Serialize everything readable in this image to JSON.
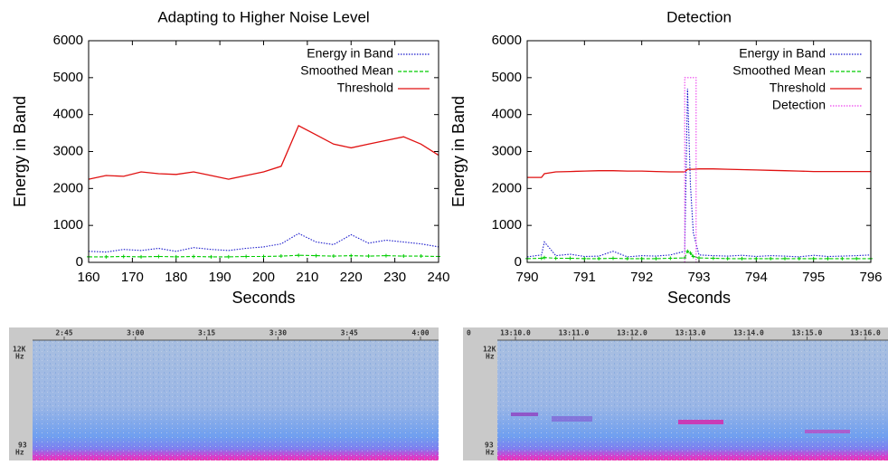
{
  "chart_data": [
    {
      "type": "line",
      "title": "Adapting to Higher Noise Level",
      "xlabel": "Seconds",
      "ylabel": "Energy in Band",
      "x": [
        160,
        164,
        168,
        172,
        176,
        180,
        184,
        188,
        192,
        196,
        200,
        204,
        208,
        212,
        216,
        220,
        224,
        228,
        232,
        236,
        240
      ],
      "xlim": [
        160,
        240
      ],
      "xticks": [
        160,
        170,
        180,
        190,
        200,
        210,
        220,
        230,
        240
      ],
      "ylim": [
        0,
        6000
      ],
      "yticks": [
        0,
        1000,
        2000,
        3000,
        4000,
        5000,
        6000
      ],
      "legend": "top-right",
      "series": [
        {
          "name": "Energy in Band",
          "color": "#1a1acc",
          "line_style": "dotted",
          "values": [
            300,
            280,
            350,
            320,
            380,
            300,
            400,
            350,
            320,
            380,
            420,
            500,
            780,
            550,
            480,
            750,
            520,
            600,
            550,
            500,
            420
          ]
        },
        {
          "name": "Smoothed Mean",
          "color": "#00cc00",
          "line_style": "dashed",
          "marker": "plus",
          "values": [
            150,
            150,
            160,
            150,
            160,
            150,
            160,
            150,
            150,
            160,
            160,
            170,
            190,
            180,
            170,
            180,
            170,
            180,
            170,
            170,
            160
          ]
        },
        {
          "name": "Threshold",
          "color": "#e01010",
          "line_style": "solid",
          "values": [
            2250,
            2350,
            2330,
            2450,
            2400,
            2380,
            2450,
            2350,
            2250,
            2350,
            2450,
            2600,
            3700,
            3450,
            3200,
            3100,
            3200,
            3300,
            3400,
            3200,
            2900
          ]
        }
      ]
    },
    {
      "type": "line",
      "title": "Detection",
      "xlabel": "Seconds",
      "ylabel": "Energy in Band",
      "x": [
        790,
        790.25,
        790.3,
        790.5,
        790.75,
        791,
        791.25,
        791.5,
        791.75,
        792,
        792.25,
        792.5,
        792.75,
        792.8,
        792.85,
        792.9,
        793,
        793.25,
        793.5,
        793.75,
        794,
        794.25,
        794.5,
        794.75,
        795,
        795.25,
        795.5,
        795.75,
        796
      ],
      "xlim": [
        790,
        796
      ],
      "xticks": [
        790,
        791,
        792,
        793,
        794,
        795,
        796
      ],
      "ylim": [
        0,
        6000
      ],
      "yticks": [
        0,
        1000,
        2000,
        3000,
        4000,
        5000,
        6000
      ],
      "legend": "top-right",
      "series": [
        {
          "name": "Energy in Band",
          "color": "#1a1acc",
          "line_style": "dotted",
          "values": [
            150,
            200,
            550,
            180,
            220,
            160,
            170,
            300,
            150,
            180,
            170,
            200,
            300,
            4700,
            2100,
            800,
            200,
            180,
            170,
            190,
            160,
            180,
            170,
            150,
            190,
            160,
            170,
            180,
            200
          ]
        },
        {
          "name": "Smoothed Mean",
          "color": "#00cc00",
          "line_style": "dashed",
          "marker": "plus",
          "values": [
            100,
            110,
            130,
            110,
            110,
            100,
            100,
            110,
            100,
            100,
            100,
            110,
            120,
            300,
            250,
            160,
            120,
            110,
            100,
            100,
            100,
            100,
            100,
            100,
            100,
            100,
            100,
            100,
            100
          ]
        },
        {
          "name": "Threshold",
          "color": "#e01010",
          "line_style": "solid",
          "values": [
            2300,
            2300,
            2400,
            2450,
            2460,
            2470,
            2480,
            2480,
            2470,
            2470,
            2460,
            2450,
            2450,
            2520,
            2520,
            2520,
            2530,
            2530,
            2520,
            2510,
            2500,
            2490,
            2480,
            2470,
            2460,
            2460,
            2460,
            2460,
            2460
          ]
        },
        {
          "name": "Detection",
          "color": "#ee44ee",
          "line_style": "dotted",
          "x": [
            792.75,
            792.75,
            792.95,
            792.95,
            792.75
          ],
          "values": [
            0,
            5000,
            5000,
            0,
            0
          ]
        }
      ]
    }
  ],
  "spectrograms": [
    {
      "time_labels": [
        "2:45",
        "3:00",
        "3:15",
        "3:30",
        "3:45",
        "4:00"
      ],
      "freq_top": "12K",
      "freq_bottom": "93",
      "freq_unit": "Hz"
    },
    {
      "origin_label": "0",
      "time_labels": [
        "13:10.0",
        "13:11.0",
        "13:12.0",
        "13:13.0",
        "13:14.0",
        "13:15.0",
        "13:16.0"
      ],
      "freq_top": "12K",
      "freq_bottom": "93",
      "freq_unit": "Hz"
    }
  ]
}
